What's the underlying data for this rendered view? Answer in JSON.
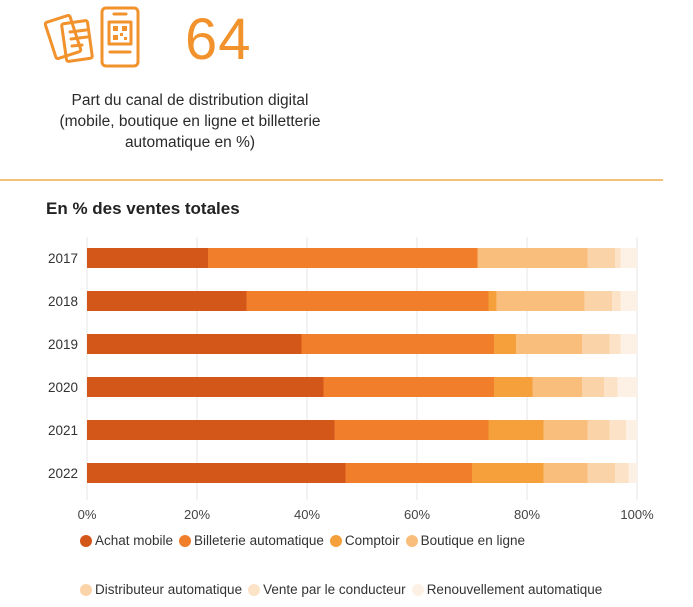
{
  "stat": {
    "number": "64",
    "caption": "Part du canal de distribution digital\n(mobile, boutique en ligne et billetterie\nautomatique en %)",
    "icon_color": "#F2922C",
    "icons": [
      "tickets-icon",
      "mobile-qr-icon"
    ]
  },
  "chart_title": "En % des ventes totales",
  "colors": {
    "Achat mobile": "#D4571A",
    "Billeterie automatique": "#F07E2A",
    "Comptoir": "#F6A03C",
    "Boutique en ligne": "#F9BE7C",
    "Distributeur automatique": "#FBD3A8",
    "Vente par le conducteur": "#FCE3C8",
    "Renouvellement automatique": "#FDF0E4"
  },
  "chart_data": {
    "type": "bar",
    "orientation": "horizontal",
    "stacked": true,
    "title": "En % des ventes totales",
    "categories": [
      "2017",
      "2018",
      "2019",
      "2020",
      "2021",
      "2022"
    ],
    "xlim": [
      0,
      100
    ],
    "x_ticks": [
      "0%",
      "20%",
      "40%",
      "60%",
      "80%",
      "100%"
    ],
    "grid": true,
    "legend_position": "bottom",
    "series": [
      {
        "name": "Achat mobile",
        "values": [
          22,
          29,
          39,
          43,
          45,
          47
        ]
      },
      {
        "name": "Billeterie automatique",
        "values": [
          49,
          44,
          35,
          31,
          28,
          23
        ]
      },
      {
        "name": "Comptoir",
        "values": [
          0,
          1.5,
          4,
          7,
          10,
          13
        ]
      },
      {
        "name": "Boutique en ligne",
        "values": [
          20,
          16,
          12,
          9,
          8,
          8
        ]
      },
      {
        "name": "Distributeur automatique",
        "values": [
          5,
          5,
          5,
          4,
          4,
          5
        ]
      },
      {
        "name": "Vente par le conducteur",
        "values": [
          1,
          1.5,
          2,
          2.5,
          3,
          2.5
        ]
      },
      {
        "name": "Renouvellement automatique",
        "values": [
          3,
          3,
          3,
          3.5,
          2,
          1.5
        ]
      }
    ]
  }
}
